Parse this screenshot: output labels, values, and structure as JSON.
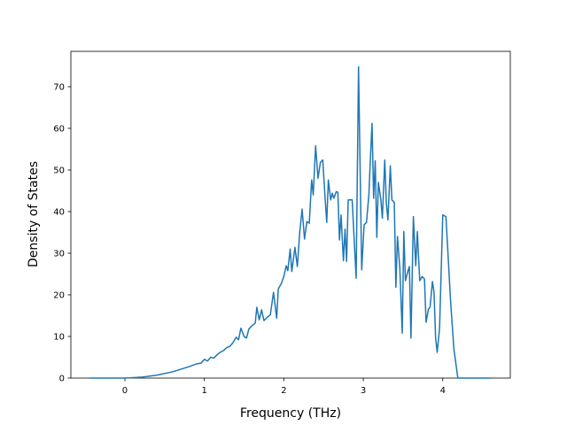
{
  "chart_data": {
    "type": "line",
    "xlabel": "Frequency (THz)",
    "ylabel": "Density of States",
    "color": "#1f77b4",
    "x": [
      -0.43,
      0,
      0.2,
      0.4,
      0.6,
      0.8,
      0.9,
      0.96,
      1.0,
      1.04,
      1.08,
      1.12,
      1.16,
      1.2,
      1.24,
      1.28,
      1.32,
      1.36,
      1.4,
      1.43,
      1.46,
      1.5,
      1.53,
      1.56,
      1.6,
      1.64,
      1.66,
      1.69,
      1.72,
      1.75,
      1.79,
      1.83,
      1.87,
      1.91,
      1.93,
      1.97,
      2.0,
      2.03,
      2.05,
      2.08,
      2.1,
      2.14,
      2.17,
      2.2,
      2.23,
      2.26,
      2.29,
      2.32,
      2.35,
      2.37,
      2.4,
      2.43,
      2.46,
      2.49,
      2.52,
      2.54,
      2.56,
      2.59,
      2.61,
      2.63,
      2.66,
      2.68,
      2.7,
      2.72,
      2.75,
      2.77,
      2.79,
      2.81,
      2.86,
      2.91,
      2.94,
      2.98,
      3.01,
      3.04,
      3.07,
      3.09,
      3.11,
      3.13,
      3.15,
      3.17,
      3.19,
      3.22,
      3.24,
      3.27,
      3.29,
      3.31,
      3.34,
      3.36,
      3.39,
      3.41,
      3.43,
      3.46,
      3.49,
      3.51,
      3.53,
      3.56,
      3.58,
      3.6,
      3.63,
      3.66,
      3.68,
      3.71,
      3.74,
      3.77,
      3.79,
      3.82,
      3.84,
      3.87,
      3.89,
      3.91,
      3.93,
      3.96,
      4.0,
      4.04,
      4.1,
      4.14,
      4.19,
      4.6
    ],
    "values": [
      0,
      0,
      0.2,
      0.7,
      1.5,
      2.7,
      3.4,
      3.6,
      4.5,
      4.1,
      5.0,
      4.8,
      5.6,
      6.2,
      6.6,
      7.3,
      7.6,
      8.5,
      9.8,
      9.2,
      12.0,
      10.0,
      9.6,
      11.8,
      12.6,
      13.2,
      17.0,
      14.0,
      16.4,
      13.8,
      14.6,
      15.2,
      20.6,
      14.4,
      21.4,
      22.8,
      24.4,
      27.0,
      25.8,
      31.0,
      25.6,
      31.4,
      26.8,
      35.0,
      40.6,
      33.4,
      37.6,
      37.2,
      47.6,
      44.0,
      55.8,
      48.0,
      51.8,
      52.4,
      43.0,
      37.4,
      47.6,
      42.8,
      44.4,
      43.2,
      44.8,
      44.6,
      33.2,
      39.2,
      28.2,
      35.8,
      28.0,
      42.8,
      42.8,
      24.0,
      74.8,
      26.0,
      36.8,
      37.4,
      44.0,
      53.0,
      61.2,
      43.2,
      52.2,
      33.8,
      47.0,
      43.0,
      38.4,
      52.4,
      42.0,
      38.0,
      51.0,
      42.8,
      42.2,
      21.8,
      34.0,
      26.4,
      10.8,
      35.2,
      23.4,
      25.6,
      26.8,
      9.6,
      38.8,
      27.0,
      35.2,
      23.4,
      24.4,
      23.8,
      13.4,
      16.6,
      17.0,
      23.2,
      20.6,
      9.6,
      6.2,
      12.0,
      39.2,
      38.8,
      18.0,
      7.0,
      0,
      0
    ],
    "xlim": [
      -0.68,
      4.85
    ],
    "ylim": [
      0,
      78.5
    ],
    "xticks": [
      0,
      1,
      2,
      3,
      4
    ],
    "yticks": [
      0,
      10,
      20,
      30,
      40,
      50,
      60,
      70
    ]
  }
}
